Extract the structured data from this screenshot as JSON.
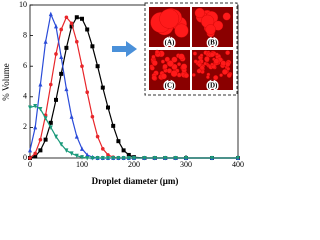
{
  "chart_data": {
    "type": "line",
    "xlabel": "Droplet diameter (μm)",
    "ylabel": "% Volume",
    "x": [
      0,
      10,
      20,
      30,
      40,
      50,
      60,
      70,
      80,
      90,
      100,
      110,
      120,
      130,
      140,
      150,
      160,
      170,
      180,
      190,
      200,
      220,
      240,
      260,
      280,
      300,
      350,
      400
    ],
    "series": [
      {
        "color": "#000000",
        "marker": "square",
        "values": [
          0,
          0.1,
          0.5,
          1.2,
          2.3,
          3.8,
          5.5,
          7.2,
          8.6,
          9.2,
          9.1,
          8.4,
          7.3,
          6.0,
          4.6,
          3.3,
          2.1,
          1.1,
          0.5,
          0.2,
          0.05,
          0,
          0,
          0,
          0,
          0,
          0,
          0
        ]
      },
      {
        "color": "#e8262a",
        "marker": "circle",
        "values": [
          0,
          0.3,
          1.2,
          2.8,
          4.8,
          6.8,
          8.4,
          9.2,
          8.8,
          7.6,
          6.0,
          4.3,
          2.7,
          1.4,
          0.6,
          0.2,
          0.05,
          0,
          0,
          0,
          0,
          0,
          0,
          0,
          0,
          0,
          0,
          0
        ]
      },
      {
        "color": "#2a4bd8",
        "marker": "triangle",
        "values": [
          0.5,
          2.0,
          4.8,
          7.6,
          9.4,
          8.6,
          6.6,
          4.5,
          2.7,
          1.4,
          0.6,
          0.2,
          0.05,
          0,
          0,
          0,
          0,
          0,
          0,
          0,
          0,
          0,
          0,
          0,
          0,
          0,
          0,
          0
        ]
      },
      {
        "color": "#1a9a7a",
        "marker": "triangle-down",
        "values": [
          3.3,
          3.4,
          3.2,
          2.6,
          2.0,
          1.4,
          0.9,
          0.5,
          0.3,
          0.15,
          0.05,
          0,
          0,
          0,
          0,
          0,
          0,
          0,
          0,
          0,
          0,
          0,
          0,
          0,
          0,
          0,
          0,
          0
        ]
      }
    ],
    "xlim": [
      0,
      400
    ],
    "xticks": [
      0,
      100,
      200,
      300,
      400
    ],
    "ylim": [
      0,
      10
    ],
    "yticks": [
      0,
      2,
      4,
      6,
      8,
      10
    ],
    "annotations": [
      "(A)",
      "(B)",
      "(C)",
      "(D)"
    ]
  }
}
